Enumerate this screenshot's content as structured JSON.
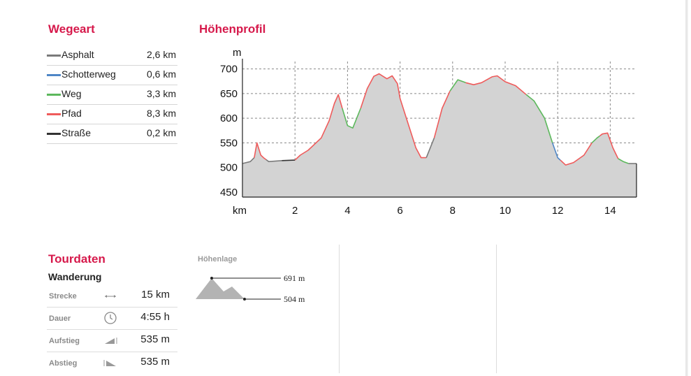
{
  "wegeart": {
    "title": "Wegeart",
    "items": [
      {
        "name": "Asphalt",
        "value": "2,6 km",
        "color": "#7a7a7a"
      },
      {
        "name": "Schotterweg",
        "value": "0,6 km",
        "color": "#4f86c6"
      },
      {
        "name": "Weg",
        "value": "3,3 km",
        "color": "#5cb85c"
      },
      {
        "name": "Pfad",
        "value": "8,3 km",
        "color": "#ef5b5b"
      },
      {
        "name": "Straße",
        "value": "0,2 km",
        "color": "#333333"
      }
    ]
  },
  "chart_data": {
    "type": "area",
    "title": "Höhenprofil",
    "xlabel": "km",
    "ylabel": "m",
    "xlim": [
      0,
      15
    ],
    "ylim": [
      440,
      715
    ],
    "x_ticks": [
      2,
      4,
      6,
      8,
      10,
      12,
      14
    ],
    "y_ticks": [
      450,
      500,
      550,
      600,
      650,
      700
    ],
    "grid": true,
    "fill_color": "#d3d3d3",
    "points": [
      [
        0.0,
        508
      ],
      [
        0.3,
        512
      ],
      [
        0.45,
        520
      ],
      [
        0.55,
        550
      ],
      [
        0.7,
        525
      ],
      [
        0.8,
        520
      ],
      [
        1.0,
        512
      ],
      [
        1.5,
        514
      ],
      [
        2.0,
        515
      ],
      [
        2.2,
        525
      ],
      [
        2.5,
        535
      ],
      [
        3.0,
        560
      ],
      [
        3.3,
        595
      ],
      [
        3.5,
        630
      ],
      [
        3.65,
        648
      ],
      [
        3.8,
        620
      ],
      [
        4.0,
        585
      ],
      [
        4.2,
        580
      ],
      [
        4.5,
        620
      ],
      [
        4.75,
        660
      ],
      [
        5.0,
        685
      ],
      [
        5.2,
        690
      ],
      [
        5.5,
        680
      ],
      [
        5.7,
        686
      ],
      [
        5.9,
        670
      ],
      [
        6.0,
        640
      ],
      [
        6.3,
        590
      ],
      [
        6.6,
        540
      ],
      [
        6.8,
        520
      ],
      [
        7.0,
        520
      ],
      [
        7.3,
        560
      ],
      [
        7.6,
        620
      ],
      [
        7.9,
        655
      ],
      [
        8.2,
        678
      ],
      [
        8.5,
        672
      ],
      [
        8.8,
        668
      ],
      [
        9.1,
        672
      ],
      [
        9.5,
        684
      ],
      [
        9.7,
        686
      ],
      [
        10.0,
        674
      ],
      [
        10.4,
        666
      ],
      [
        10.8,
        648
      ],
      [
        11.1,
        635
      ],
      [
        11.5,
        600
      ],
      [
        11.8,
        550
      ],
      [
        12.0,
        520
      ],
      [
        12.3,
        505
      ],
      [
        12.6,
        510
      ],
      [
        13.0,
        525
      ],
      [
        13.3,
        550
      ],
      [
        13.5,
        560
      ],
      [
        13.7,
        568
      ],
      [
        13.9,
        570
      ],
      [
        14.1,
        540
      ],
      [
        14.3,
        518
      ],
      [
        14.5,
        512
      ],
      [
        14.7,
        508
      ],
      [
        15.0,
        508
      ]
    ],
    "segments": [
      {
        "from": 0.0,
        "to": 0.45,
        "surface": "Asphalt"
      },
      {
        "from": 0.45,
        "to": 0.9,
        "surface": "Pfad"
      },
      {
        "from": 0.9,
        "to": 1.5,
        "surface": "Asphalt"
      },
      {
        "from": 1.5,
        "to": 2.0,
        "surface": "Straße"
      },
      {
        "from": 2.0,
        "to": 3.8,
        "surface": "Pfad"
      },
      {
        "from": 3.8,
        "to": 4.5,
        "surface": "Weg"
      },
      {
        "from": 4.5,
        "to": 7.0,
        "surface": "Pfad"
      },
      {
        "from": 7.0,
        "to": 7.3,
        "surface": "Asphalt"
      },
      {
        "from": 7.3,
        "to": 7.9,
        "surface": "Pfad"
      },
      {
        "from": 7.9,
        "to": 8.5,
        "surface": "Weg"
      },
      {
        "from": 8.5,
        "to": 10.8,
        "surface": "Pfad"
      },
      {
        "from": 10.8,
        "to": 11.8,
        "surface": "Weg"
      },
      {
        "from": 11.8,
        "to": 12.1,
        "surface": "Schotterweg"
      },
      {
        "from": 12.1,
        "to": 13.3,
        "surface": "Pfad"
      },
      {
        "from": 13.3,
        "to": 13.6,
        "surface": "Weg"
      },
      {
        "from": 13.6,
        "to": 14.3,
        "surface": "Pfad"
      },
      {
        "from": 14.3,
        "to": 14.7,
        "surface": "Weg"
      },
      {
        "from": 14.7,
        "to": 15.0,
        "surface": "Asphalt"
      }
    ]
  },
  "tourdaten": {
    "title": "Tourdaten",
    "subtitle": "Wanderung",
    "stats": [
      {
        "label": "Strecke",
        "icon": "arrows-horizontal-icon",
        "value": "15  km"
      },
      {
        "label": "Dauer",
        "icon": "clock-icon",
        "value": "4:55  h"
      },
      {
        "label": "Aufstieg",
        "icon": "ascent-icon",
        "value": "535  m"
      },
      {
        "label": "Abstieg",
        "icon": "descent-icon",
        "value": "535  m"
      }
    ]
  },
  "hoehenlage": {
    "label": "Höhenlage",
    "max": "691 m",
    "min": "504 m",
    "icon": "mountain-icon"
  }
}
